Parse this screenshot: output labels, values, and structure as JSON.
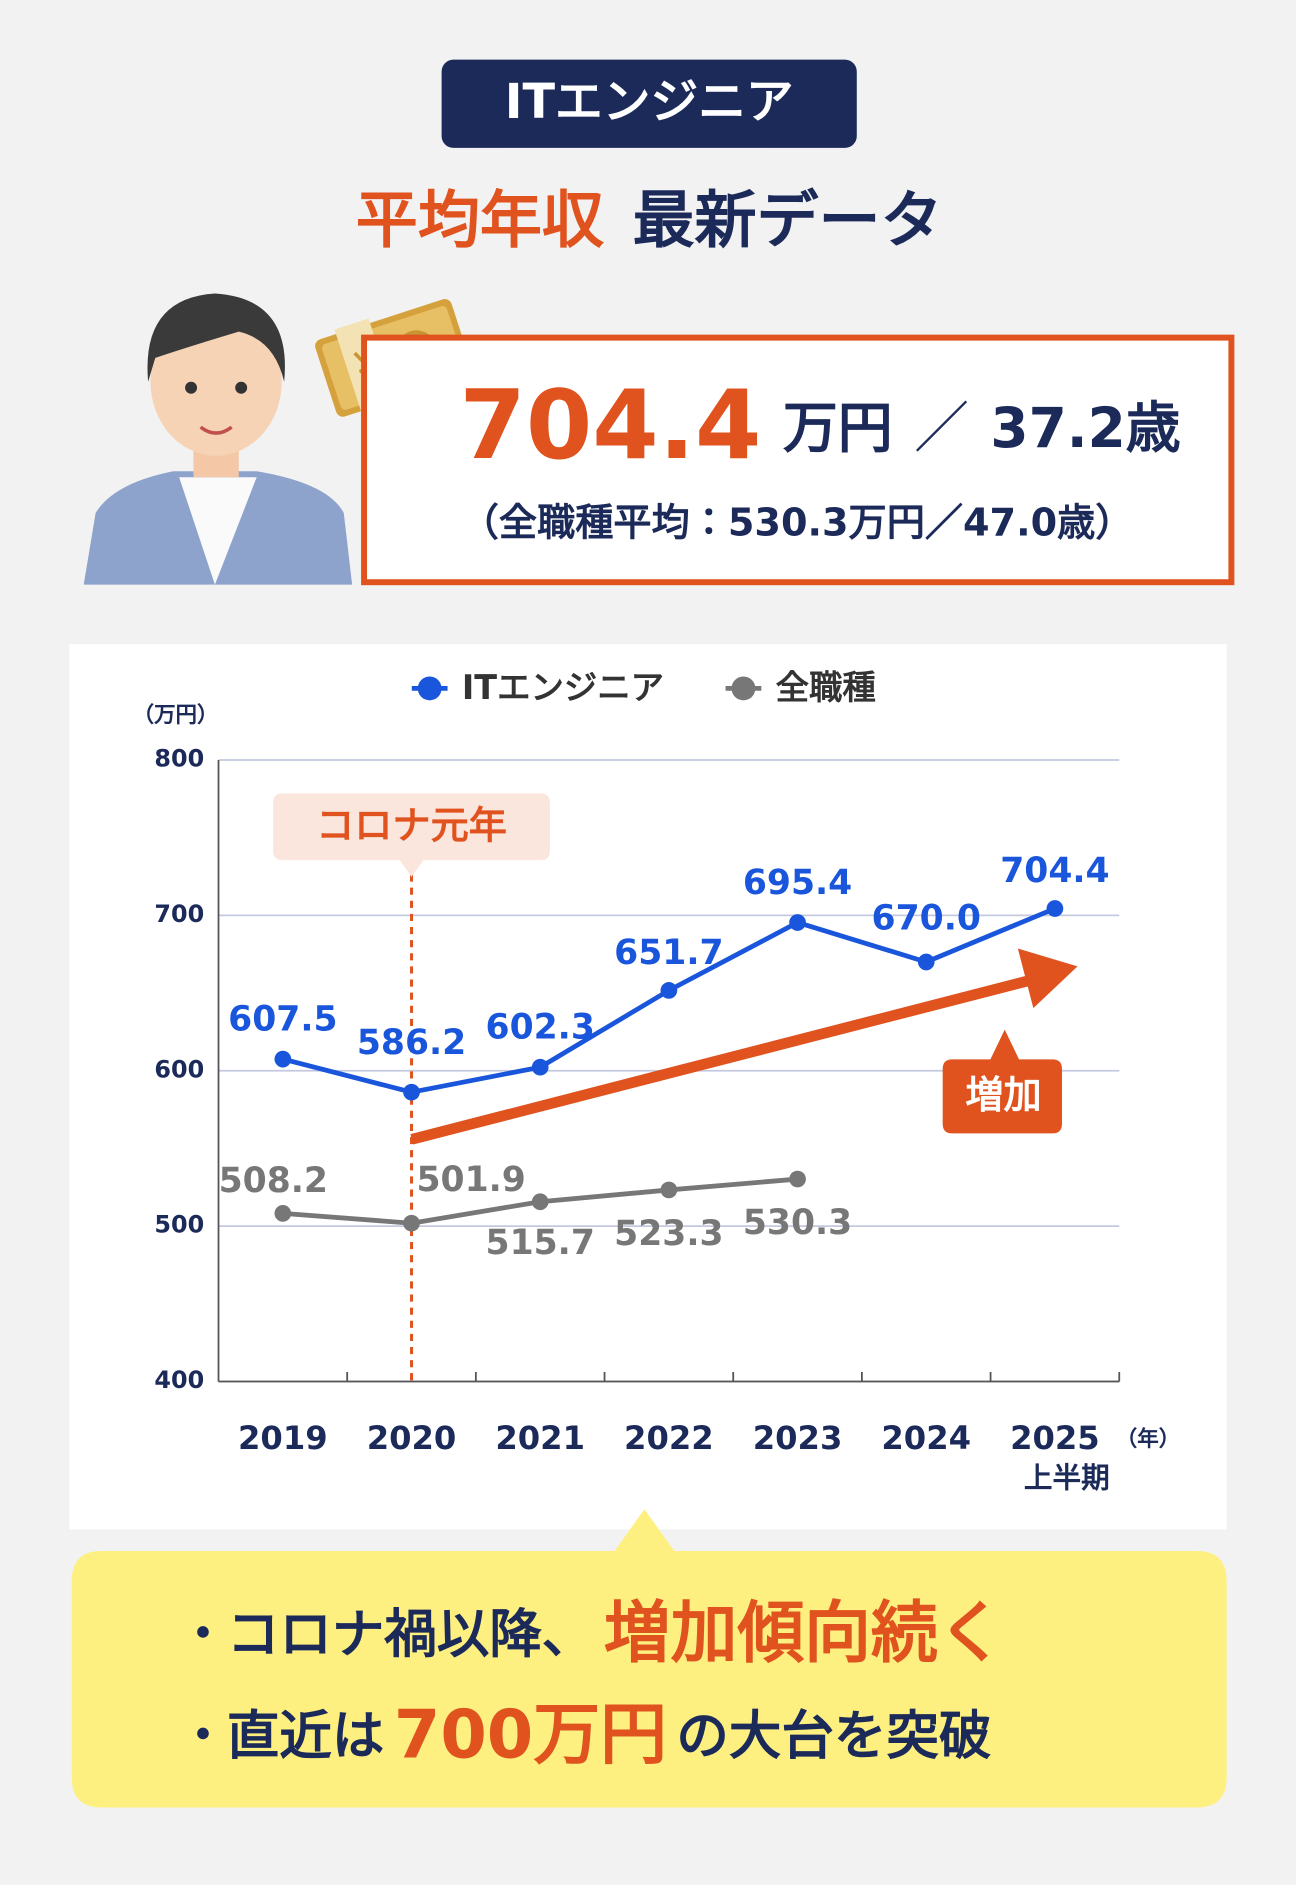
{
  "header": {
    "badge": "ITエンジニア",
    "title_highlight": "平均年収",
    "title_rest": "最新データ"
  },
  "summary": {
    "salary": "704.4",
    "salary_unit": "万円",
    "separator": "／",
    "age": "37.2歳",
    "comparison": "（全職種平均：530.3万円／47.0歳）"
  },
  "chart_data": {
    "type": "line",
    "y_unit": "（万円）",
    "x_unit": "（年）",
    "categories": [
      "2019",
      "2020",
      "2021",
      "2022",
      "2023",
      "2024",
      "2025"
    ],
    "last_category_note": "上半期",
    "series": [
      {
        "name": "ITエンジニア",
        "color": "#1a56db",
        "values": [
          607.5,
          586.2,
          602.3,
          651.7,
          695.4,
          670.0,
          704.4
        ],
        "value_labels": [
          "607.5",
          "586.2",
          "602.3",
          "651.7",
          "695.4",
          "670.0",
          "704.4"
        ]
      },
      {
        "name": "全職種",
        "color": "#777777",
        "values": [
          508.2,
          501.9,
          515.7,
          523.3,
          530.3,
          null,
          null
        ]
      }
    ],
    "ylim": [
      400,
      800
    ],
    "yticks": [
      400,
      500,
      600,
      700,
      800
    ],
    "grid": true,
    "legend_position": "top",
    "annotations": [
      {
        "text": "コロナ元年",
        "category": "2020"
      },
      {
        "text": "増加"
      }
    ]
  },
  "callout": {
    "lines": [
      {
        "bullet": "・",
        "parts": [
          {
            "text": "コロナ禍以降、",
            "highlight": false
          },
          {
            "text": "増加傾向続く",
            "highlight": true
          }
        ]
      },
      {
        "bullet": "・",
        "parts": [
          {
            "text": "直近は",
            "highlight": false
          },
          {
            "text": "700万円",
            "highlight": true
          },
          {
            "text": "の大台を突破",
            "highlight": false
          }
        ]
      }
    ]
  }
}
